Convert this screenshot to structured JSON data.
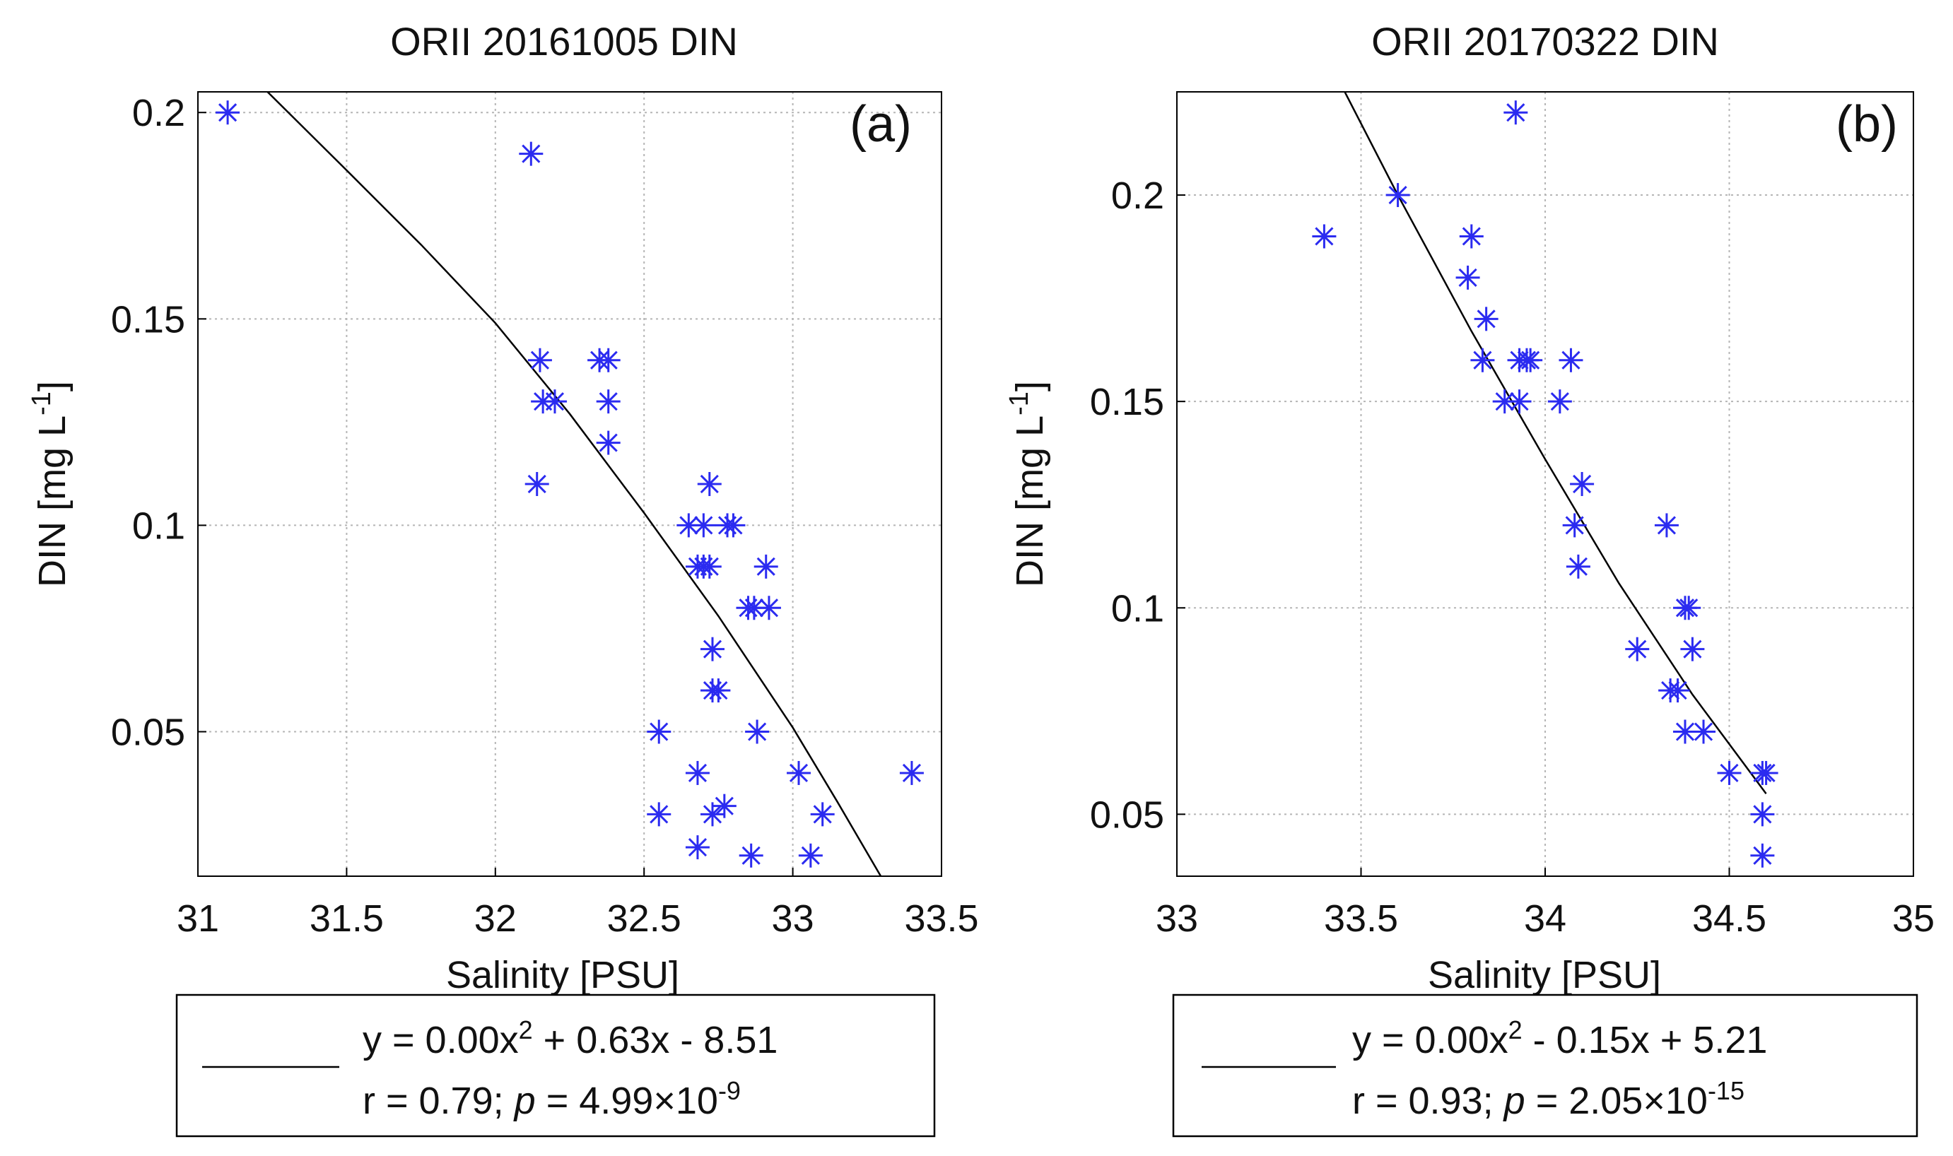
{
  "chart_data": [
    {
      "type": "scatter",
      "title": "ORII 20161005 DIN",
      "panel_label": "(a)",
      "xlabel": "Salinity [PSU]",
      "ylabel_main": "DIN [mg L",
      "ylabel_sup": "-1",
      "ylabel_close": "]",
      "xlim": [
        31,
        33.5
      ],
      "ylim": [
        0.015,
        0.205
      ],
      "xticks": [
        31,
        31.5,
        32,
        32.5,
        33,
        33.5
      ],
      "xtick_labels": [
        "31",
        "31.5",
        "32",
        "32.5",
        "33",
        "33.5"
      ],
      "yticks": [
        0.05,
        0.1,
        0.15,
        0.2
      ],
      "ytick_labels": [
        "0.05",
        "0.1",
        "0.15",
        "0.2"
      ],
      "grid": true,
      "marker": "asterisk",
      "point_color": "#2b2bf0",
      "line_color": "#000000",
      "points": [
        [
          31.1,
          0.2
        ],
        [
          32.12,
          0.19
        ],
        [
          32.15,
          0.14
        ],
        [
          32.16,
          0.13
        ],
        [
          32.2,
          0.13
        ],
        [
          32.14,
          0.11
        ],
        [
          32.35,
          0.14
        ],
        [
          32.38,
          0.14
        ],
        [
          32.38,
          0.13
        ],
        [
          32.38,
          0.12
        ],
        [
          32.65,
          0.1
        ],
        [
          32.7,
          0.1
        ],
        [
          32.78,
          0.1
        ],
        [
          32.8,
          0.1
        ],
        [
          32.72,
          0.11
        ],
        [
          32.68,
          0.09
        ],
        [
          32.7,
          0.09
        ],
        [
          32.72,
          0.09
        ],
        [
          32.91,
          0.09
        ],
        [
          32.85,
          0.08
        ],
        [
          32.87,
          0.08
        ],
        [
          32.92,
          0.08
        ],
        [
          32.73,
          0.07
        ],
        [
          32.73,
          0.06
        ],
        [
          32.75,
          0.06
        ],
        [
          32.55,
          0.05
        ],
        [
          32.88,
          0.05
        ],
        [
          32.68,
          0.04
        ],
        [
          33.02,
          0.04
        ],
        [
          33.4,
          0.04
        ],
        [
          32.55,
          0.03
        ],
        [
          32.73,
          0.03
        ],
        [
          32.77,
          0.032
        ],
        [
          33.1,
          0.03
        ],
        [
          32.68,
          0.022
        ],
        [
          32.86,
          0.02
        ],
        [
          33.06,
          0.02
        ]
      ],
      "fit_line": {
        "x": [
          31.22,
          31.5,
          31.75,
          32.0,
          32.25,
          32.5,
          32.75,
          33.0,
          33.15,
          33.32
        ],
        "y": [
          0.206,
          0.186,
          0.168,
          0.149,
          0.127,
          0.103,
          0.078,
          0.051,
          0.033,
          0.012
        ]
      },
      "legend": {
        "equation_prefix": "y = 0.00x",
        "equation_sq": "2",
        "equation_suffix": " + 0.63x - 8.51",
        "stats_prefix": "r = 0.79; ",
        "stats_p": "p",
        "stats_mid": " = 4.99×10",
        "stats_exp": "-9"
      }
    },
    {
      "type": "scatter",
      "title": "ORII 20170322 DIN",
      "panel_label": "(b)",
      "xlabel": "Salinity [PSU]",
      "ylabel_main": "DIN [mg L",
      "ylabel_sup": "-1",
      "ylabel_close": "]",
      "xlim": [
        33,
        35
      ],
      "ylim": [
        0.035,
        0.225
      ],
      "xticks": [
        33,
        33.5,
        34,
        34.5,
        35
      ],
      "xtick_labels": [
        "33",
        "33.5",
        "34",
        "34.5",
        "35"
      ],
      "yticks": [
        0.05,
        0.1,
        0.15,
        0.2
      ],
      "ytick_labels": [
        "0.05",
        "0.1",
        "0.15",
        "0.2"
      ],
      "grid": true,
      "marker": "asterisk",
      "point_color": "#2b2bf0",
      "line_color": "#000000",
      "points": [
        [
          33.92,
          0.22
        ],
        [
          33.6,
          0.2
        ],
        [
          33.4,
          0.19
        ],
        [
          33.8,
          0.19
        ],
        [
          33.79,
          0.18
        ],
        [
          33.84,
          0.17
        ],
        [
          33.83,
          0.16
        ],
        [
          33.93,
          0.16
        ],
        [
          33.95,
          0.16
        ],
        [
          33.96,
          0.16
        ],
        [
          34.07,
          0.16
        ],
        [
          33.89,
          0.15
        ],
        [
          33.93,
          0.15
        ],
        [
          34.04,
          0.15
        ],
        [
          34.1,
          0.13
        ],
        [
          34.08,
          0.12
        ],
        [
          34.33,
          0.12
        ],
        [
          34.09,
          0.11
        ],
        [
          34.38,
          0.1
        ],
        [
          34.39,
          0.1
        ],
        [
          34.25,
          0.09
        ],
        [
          34.4,
          0.09
        ],
        [
          34.34,
          0.08
        ],
        [
          34.36,
          0.08
        ],
        [
          34.38,
          0.07
        ],
        [
          34.43,
          0.07
        ],
        [
          34.5,
          0.06
        ],
        [
          34.59,
          0.06
        ],
        [
          34.6,
          0.06
        ],
        [
          34.59,
          0.05
        ],
        [
          34.59,
          0.04
        ]
      ],
      "fit_line": {
        "x": [
          33.45,
          33.6,
          33.8,
          34.0,
          34.2,
          34.4,
          34.6
        ],
        "y": [
          0.226,
          0.2,
          0.167,
          0.136,
          0.106,
          0.079,
          0.055
        ]
      },
      "legend": {
        "equation_prefix": "y = 0.00x",
        "equation_sq": "2",
        "equation_suffix": " - 0.15x + 5.21",
        "stats_prefix": "r = 0.93; ",
        "stats_p": "p",
        "stats_mid": " = 2.05×10",
        "stats_exp": "-15"
      }
    }
  ]
}
